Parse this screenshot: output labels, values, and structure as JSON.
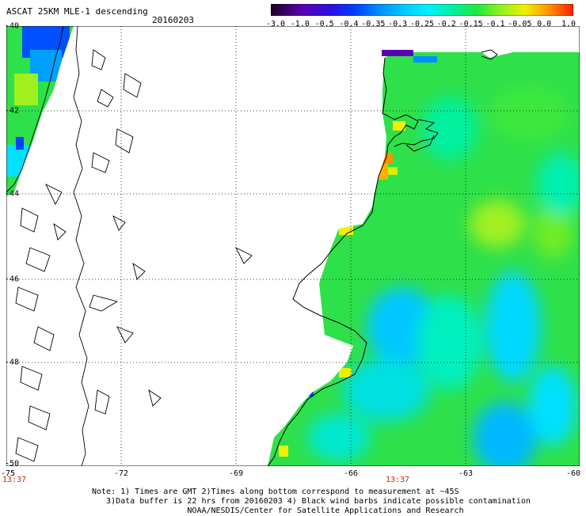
{
  "header": {
    "title": "ASCAT 25KM MLE-1 descending",
    "date": "20160203"
  },
  "colorbar": {
    "labels": [
      "-3.0",
      "-1.0",
      "-0.5",
      "-0.4",
      "-0.35",
      "-0.3",
      "-0.25",
      "-0.2",
      "-0.15",
      "-0.1",
      "-0.05",
      "0.0",
      "1.0"
    ],
    "colors": [
      "#3a0050",
      "#5b00b0",
      "#2a10e0",
      "#0040ff",
      "#0090ff",
      "#00c8ff",
      "#00f0ff",
      "#00f0a0",
      "#20e840",
      "#90f020",
      "#f0f000",
      "#ff9000",
      "#ff2000"
    ]
  },
  "axes": {
    "x_ticks": [
      "-75",
      "-72",
      "-69",
      "-66",
      "-63",
      "-60"
    ],
    "y_ticks": [
      "-40",
      "-42",
      "-44",
      "-46",
      "-48",
      "-50"
    ]
  },
  "times": [
    "13:37",
    "13:37"
  ],
  "notes": [
    "Note: 1) Times are GMT 2)Times along bottom correspond to measurement at ~45S",
    "   3)Data buffer is 22 hrs from 20160203 4) Black wind barbs indicate possible contamination",
    "                    NOAA/NESDIS/Center for Satellite Applications and Research"
  ]
}
